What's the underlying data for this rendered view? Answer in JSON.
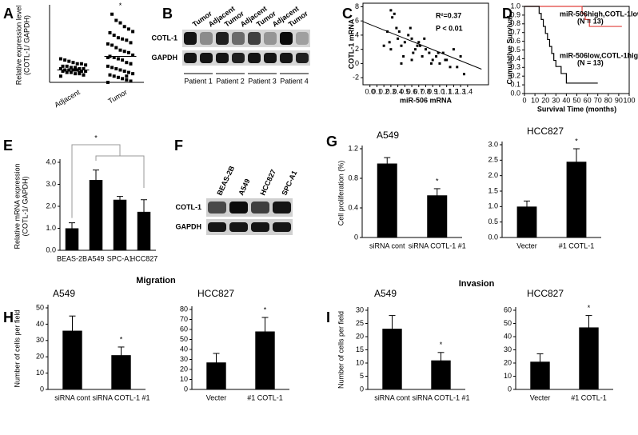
{
  "panel_labels": [
    "A",
    "B",
    "C",
    "D",
    "E",
    "F",
    "G",
    "H",
    "I"
  ],
  "headings": {
    "migration": "Migration",
    "invasion": "Invasion"
  },
  "blots": [
    {
      "lanes": [
        "Tumor",
        "Adjacent",
        "Tumor",
        "Adjacent",
        "Tumor",
        "Adjacent",
        "Tumor"
      ],
      "rows": [
        "COTL-1",
        "GAPDH"
      ],
      "groups": [
        "Patient 1",
        "Patient 2",
        "Patient 3",
        "Patient 4"
      ]
    },
    {
      "lanes": [
        "BEAS-2B",
        "A549",
        "HCC827",
        "SPC-A1"
      ],
      "rows": [
        "COTL-1",
        "GAPDH"
      ]
    }
  ],
  "chart_data": [
    {
      "type": "dot",
      "ylabel": [
        "Relative expression level",
        "(COTL-1/ GAPDH)"
      ],
      "ylim": [
        0,
        6
      ],
      "series": [
        {
          "name": "Adjacent",
          "color": "#000000",
          "mean": 1.0,
          "values": [
            0.5,
            0.6,
            0.7,
            0.7,
            0.8,
            0.8,
            0.9,
            0.9,
            0.9,
            1.0,
            1.0,
            1.0,
            1.0,
            1.1,
            1.1,
            1.1,
            1.2,
            1.2,
            1.3,
            1.3,
            1.4,
            1.5,
            1.5,
            1.6,
            1.7,
            1.8,
            1.9,
            0.6,
            0.8,
            1.0
          ]
        },
        {
          "name": "Tumor",
          "color": "#000000",
          "mean": 2.1,
          "values": [
            0.0,
            0.1,
            0.2,
            0.3,
            0.4,
            0.5,
            0.6,
            0.7,
            0.8,
            0.9,
            1.0,
            1.1,
            1.2,
            1.3,
            1.5,
            1.6,
            1.8,
            1.9,
            2.0,
            2.1,
            2.2,
            2.4,
            2.5,
            2.6,
            2.8,
            3.0,
            3.1,
            3.2,
            3.4,
            3.5,
            3.6,
            3.8,
            4.0,
            4.1,
            4.3,
            4.5,
            4.8,
            5.0,
            5.5,
            2.0,
            1.5,
            0.5
          ]
        }
      ],
      "annotations": [
        {
          "text": "*",
          "category": "Tumor"
        }
      ]
    },
    {
      "type": "scatter",
      "xlabel": "miR-506 mRNA",
      "ylabel": "COTL-1 mRNA",
      "color": "#000000",
      "annotations": [
        {
          "text": "R²=0.37"
        },
        {
          "text": "P < 0.01"
        }
      ],
      "xlim": [
        -0.1,
        1.7
      ],
      "ylim": [
        -3,
        8.5
      ],
      "xticks": [
        {
          "value": 0,
          "label": "0.0"
        },
        {
          "value": 0.1,
          "label": "0.1"
        },
        {
          "value": 0.2,
          "label": "0.2"
        },
        {
          "value": 0.3,
          "label": "0.3"
        },
        {
          "value": 0.4,
          "label": "0.4"
        },
        {
          "value": 0.5,
          "label": "0.5"
        },
        {
          "value": 0.6,
          "label": "0.6"
        },
        {
          "value": 0.7,
          "label": "0.7"
        },
        {
          "value": 0.8,
          "label": "0.8"
        },
        {
          "value": 0.9,
          "label": "0.9"
        },
        {
          "value": 1,
          "label": "1.0"
        },
        {
          "value": 1.1,
          "label": "1.1"
        },
        {
          "value": 1.2,
          "label": "1.2"
        },
        {
          "value": 1.3,
          "label": "1.3"
        },
        {
          "value": 1.4,
          "label": "1.4"
        }
      ],
      "yticks": [
        -2,
        0,
        2,
        4,
        6,
        8
      ],
      "x": [
        0.3,
        0.32,
        0.35,
        0.38,
        0.4,
        0.42,
        0.45,
        0.3,
        0.5,
        0.55,
        0.6,
        0.62,
        0.65,
        0.7,
        0.72,
        0.75,
        0.8,
        0.85,
        0.9,
        0.95,
        1.0,
        1.05,
        1.1,
        1.15,
        1.2,
        1.3,
        1.35,
        0.25,
        0.28,
        0.48,
        0.58,
        0.68,
        0.78,
        0.88,
        0.98,
        1.08,
        1.25,
        0.2,
        0.45,
        0.6
      ],
      "values": [
        7.5,
        6.5,
        7.0,
        5.0,
        3.5,
        4.5,
        2.5,
        2.0,
        3.0,
        4.0,
        3.5,
        1.5,
        2.0,
        3.0,
        2.5,
        1.0,
        2.0,
        1.5,
        0.5,
        1.0,
        0.0,
        1.5,
        0.5,
        -0.5,
        2.0,
        1.0,
        -1.5,
        4.5,
        3.0,
        1.0,
        5.0,
        2.5,
        3.5,
        0.0,
        1.5,
        0.5,
        -0.5,
        2.5,
        0.0,
        0.5
      ],
      "fit": {
        "x": [
          -0.1,
          1.6
        ],
        "values": [
          5.9,
          -0.8
        ]
      }
    },
    {
      "type": "step",
      "xlabel": "Survival Time (months)",
      "ylabel": "Cumulative Survival",
      "xlim": [
        0,
        100
      ],
      "ylim": [
        0,
        1
      ],
      "xticks": [
        0,
        10,
        20,
        30,
        40,
        50,
        60,
        70,
        80,
        90,
        100
      ],
      "yticks": [
        {
          "value": 0,
          "label": "0.0"
        },
        {
          "value": 0.1,
          "label": "0.1"
        },
        {
          "value": 0.2,
          "label": "0.2"
        },
        {
          "value": 0.3,
          "label": "0.3"
        },
        {
          "value": 0.4,
          "label": "0.4"
        },
        {
          "value": 0.5,
          "label": "0.5"
        },
        {
          "value": 0.6,
          "label": "0.6"
        },
        {
          "value": 0.7,
          "label": "0.7"
        },
        {
          "value": 0.8,
          "label": "0.8"
        },
        {
          "value": 0.9,
          "label": "0.9"
        },
        {
          "value": 1,
          "label": "1.0"
        }
      ],
      "series": [
        {
          "name": "miR-506high,COTL-1low",
          "n": "(N = 13)",
          "color": "#e0403c",
          "x": [
            0,
            55,
            58,
            62,
            93
          ],
          "values": [
            1,
            0.92,
            0.85,
            0.77,
            0.77
          ]
        },
        {
          "name": "miR-506low,COTL-1high",
          "n": "(N = 13)",
          "color": "#000000",
          "x": [
            0,
            14,
            16,
            18,
            20,
            22,
            24,
            26,
            28,
            30,
            35,
            40,
            70
          ],
          "values": [
            1,
            0.92,
            0.85,
            0.77,
            0.69,
            0.62,
            0.54,
            0.46,
            0.38,
            0.31,
            0.23,
            0.12,
            0.12
          ]
        }
      ]
    },
    {
      "type": "bar",
      "ylabel": [
        "Relative mRNA expression",
        "(COTL-1/ GAPDH)"
      ],
      "color": "#000000",
      "categories": [
        "BEAS-2B",
        "A549",
        "SPC-A1",
        "HCC827"
      ],
      "values": [
        1.0,
        3.2,
        2.3,
        1.75
      ],
      "errors": [
        0.25,
        0.45,
        0.15,
        0.55
      ],
      "ylim": [
        0,
        4
      ],
      "yticks": [
        {
          "value": 0,
          "label": "0.0"
        },
        {
          "value": 1,
          "label": "1.0"
        },
        {
          "value": 2,
          "label": "2.0"
        },
        {
          "value": 3,
          "label": "3.0"
        },
        {
          "value": 4,
          "label": "4.0"
        }
      ],
      "annotations": [
        {
          "text": "*"
        }
      ]
    },
    {
      "type": "bar",
      "title": "A549",
      "ylabel": "Cell proliferation (%)",
      "color": "#000000",
      "categories": [
        "siRNA cont",
        "siRNA COTL-1 #1"
      ],
      "values": [
        1.0,
        0.57
      ],
      "errors": [
        0.08,
        0.09
      ],
      "ylim": [
        0,
        1.2
      ],
      "yticks": [
        0,
        0.4,
        0.8,
        1.2
      ],
      "annotations": [
        {
          "text": "*",
          "category": "siRNA COTL-1 #1"
        }
      ]
    },
    {
      "type": "bar",
      "title": "HCC827",
      "color": "#000000",
      "categories": [
        "Vecter",
        "#1 COTL-1"
      ],
      "values": [
        1.0,
        2.45
      ],
      "errors": [
        0.18,
        0.42
      ],
      "ylim": [
        0,
        3
      ],
      "yticks": [
        {
          "value": 0,
          "label": "0.0"
        },
        {
          "value": 0.5,
          "label": "0.5"
        },
        {
          "value": 1,
          "label": "1.0"
        },
        {
          "value": 1.5,
          "label": "1.5"
        },
        {
          "value": 2,
          "label": "2.0"
        },
        {
          "value": 2.5,
          "label": "2.5"
        },
        {
          "value": 3,
          "label": "3.0"
        }
      ],
      "annotations": [
        {
          "text": "*",
          "category": "#1 COTL-1"
        }
      ]
    },
    {
      "type": "bar",
      "title": "A549",
      "ylabel": "Number of cells per field",
      "color": "#000000",
      "categories": [
        "siRNA cont",
        "siRNA COTL-1 #1"
      ],
      "values": [
        36,
        21
      ],
      "errors": [
        9,
        5
      ],
      "ylim": [
        0,
        50
      ],
      "yticks": [
        0,
        10,
        20,
        30,
        40,
        50
      ],
      "annotations": [
        {
          "text": "*",
          "category": "siRNA COTL-1 #1"
        }
      ]
    },
    {
      "type": "bar",
      "title": "HCC827",
      "color": "#000000",
      "categories": [
        "Vecter",
        "#1 COTL-1"
      ],
      "values": [
        27,
        58
      ],
      "errors": [
        9,
        14
      ],
      "ylim": [
        0,
        80
      ],
      "yticks": [
        0,
        10,
        20,
        30,
        40,
        50,
        60,
        70,
        80
      ],
      "annotations": [
        {
          "text": "*",
          "category": "#1 COTL-1"
        }
      ]
    },
    {
      "type": "bar",
      "title": "A549",
      "ylabel": "Number of cells per field",
      "color": "#000000",
      "categories": [
        "siRNA cont",
        "siRNA COTL-1 #1"
      ],
      "values": [
        23,
        11
      ],
      "errors": [
        5,
        3
      ],
      "ylim": [
        0,
        30
      ],
      "yticks": [
        0,
        5,
        10,
        15,
        20,
        25,
        30
      ],
      "annotations": [
        {
          "text": "*",
          "category": "siRNA COTL-1 #1"
        }
      ]
    },
    {
      "type": "bar",
      "title": "HCC827",
      "color": "#000000",
      "categories": [
        "Vecter",
        "#1 COTL-1"
      ],
      "values": [
        21,
        47
      ],
      "errors": [
        6,
        9
      ],
      "ylim": [
        0,
        60
      ],
      "yticks": [
        0,
        10,
        20,
        30,
        40,
        50,
        60
      ],
      "annotations": [
        {
          "text": "*",
          "category": "#1 COTL-1"
        }
      ]
    }
  ]
}
